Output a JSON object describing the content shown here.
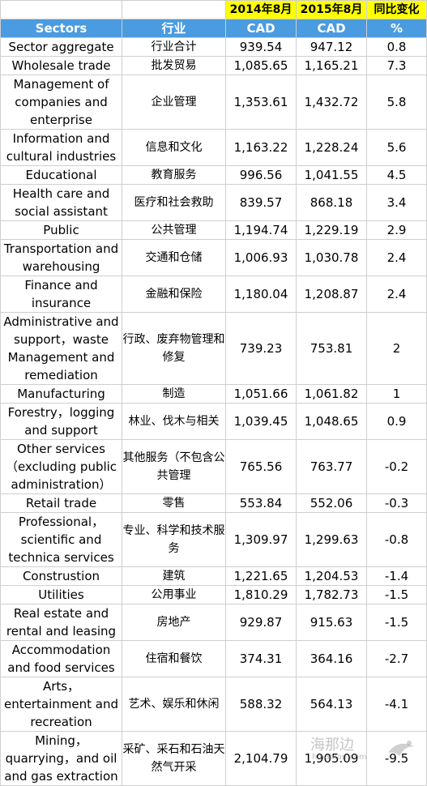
{
  "header": {
    "year1": "2014年8月",
    "year2": "2015年8月",
    "change": "同比变化",
    "col_sector_en": "Sectors",
    "col_sector_zh": "行业",
    "unit1": "CAD",
    "unit2": "CAD",
    "unit_pct": "%"
  },
  "rows": [
    {
      "en": "Sector aggregate",
      "zh": "行业合计",
      "v2014": "939.54",
      "v2015": "947.12",
      "pct": "0.8"
    },
    {
      "en": "Wholesale trade",
      "zh": "批发贸易",
      "v2014": "1,085.65",
      "v2015": "1,165.21",
      "pct": "7.3"
    },
    {
      "en": "Management of companies and enterprise",
      "zh": "企业管理",
      "v2014": "1,353.61",
      "v2015": "1,432.72",
      "pct": "5.8"
    },
    {
      "en": "Information and cultural industries",
      "zh": "信息和文化",
      "v2014": "1,163.22",
      "v2015": "1,228.24",
      "pct": "5.6"
    },
    {
      "en": "Educational",
      "zh": "教育服务",
      "v2014": "996.56",
      "v2015": "1,041.55",
      "pct": "4.5"
    },
    {
      "en": "Health care and social assistant",
      "zh": "医疗和社会救助",
      "v2014": "839.57",
      "v2015": "868.18",
      "pct": "3.4"
    },
    {
      "en": "Public",
      "zh": "公共管理",
      "v2014": "1,194.74",
      "v2015": "1,229.19",
      "pct": "2.9"
    },
    {
      "en": "Transportation and warehousing",
      "zh": "交通和仓储",
      "v2014": "1,006.93",
      "v2015": "1,030.78",
      "pct": "2.4"
    },
    {
      "en": "Finance and insurance",
      "zh": "金融和保险",
      "v2014": "1,180.04",
      "v2015": "1,208.87",
      "pct": "2.4"
    },
    {
      "en": "Administrative and support，waste Management and remediation",
      "zh": "行政、废弃物管理和修复",
      "v2014": "739.23",
      "v2015": "753.81",
      "pct": "2"
    },
    {
      "en": "Manufacturing",
      "zh": "制造",
      "v2014": "1,051.66",
      "v2015": "1,061.82",
      "pct": "1"
    },
    {
      "en": "Forestry，logging and support",
      "zh": "林业、伐木与相关",
      "v2014": "1,039.45",
      "v2015": "1,048.65",
      "pct": "0.9"
    },
    {
      "en": "Other services（excluding public administration）",
      "zh": "其他服务（不包含公共管理",
      "v2014": "765.56",
      "v2015": "763.77",
      "pct": "-0.2"
    },
    {
      "en": "Retail trade",
      "zh": "零售",
      "v2014": "553.84",
      "v2015": "552.06",
      "pct": "-0.3"
    },
    {
      "en": "Professional，scientific and technica services",
      "zh": "专业、科学和技术服务",
      "v2014": "1,309.97",
      "v2015": "1,299.63",
      "pct": "-0.8"
    },
    {
      "en": "Construstion",
      "zh": "建筑",
      "v2014": "1,221.65",
      "v2015": "1,204.53",
      "pct": "-1.4"
    },
    {
      "en": "Utilities",
      "zh": "公用事业",
      "v2014": "1,810.29",
      "v2015": "1,782.73",
      "pct": "-1.5"
    },
    {
      "en": "Real estate and rental and leasing",
      "zh": "房地产",
      "v2014": "929.87",
      "v2015": "915.63",
      "pct": "-1.5"
    },
    {
      "en": "Accommodation and food services",
      "zh": "住宿和餐饮",
      "v2014": "374.31",
      "v2015": "364.16",
      "pct": "-2.7"
    },
    {
      "en": "Arts，entertainment and recreation",
      "zh": "艺术、娱乐和休闲",
      "v2014": "588.32",
      "v2015": "564.13",
      "pct": "-4.1"
    },
    {
      "en": "Mining，quarrying，and oil and gas extraction",
      "zh": "采矿、采石和石油天然气开采",
      "v2014": "2,104.79",
      "v2015": "1,905.09",
      "pct": "-9.5"
    }
  ],
  "watermark": {
    "cn": "海那边",
    "en": "hinabian.com"
  }
}
